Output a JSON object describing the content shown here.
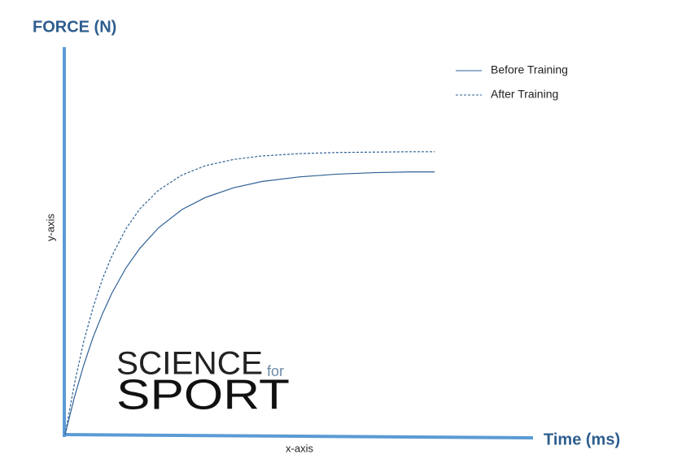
{
  "chart_data": {
    "type": "line",
    "title": "FORCE (N)",
    "xlabel": "Time (ms)",
    "x_axis_text": "x-axis",
    "y_axis_text": "y-axis",
    "x": [
      0,
      2,
      4,
      6,
      8,
      10,
      13,
      16,
      20,
      25,
      30,
      36,
      42,
      50,
      58,
      66,
      74,
      79
    ],
    "series": [
      {
        "name": "Before Training",
        "color": "#2f6196",
        "dashed": false,
        "values": [
          0,
          9.7,
          18.0,
          25.2,
          31.2,
          36.5,
          43.0,
          48.1,
          53.4,
          58.1,
          61.2,
          63.7,
          65.3,
          66.5,
          67.2,
          67.6,
          67.8,
          67.8
        ]
      },
      {
        "name": "After Training",
        "color": "#2f6196",
        "dashed": true,
        "values": [
          0,
          13.2,
          24.1,
          32.9,
          40.2,
          46.1,
          53.1,
          58.3,
          63.1,
          67.0,
          69.4,
          71.0,
          71.9,
          72.5,
          72.8,
          72.9,
          73.0,
          73.0
        ]
      }
    ],
    "xlim": [
      0,
      100
    ],
    "ylim": [
      0,
      100
    ],
    "axis_color": "#5b9bd5",
    "legend": "upper right"
  },
  "logo": {
    "line1": "SCIENCE",
    "small": "for",
    "line2": "SPORT"
  }
}
